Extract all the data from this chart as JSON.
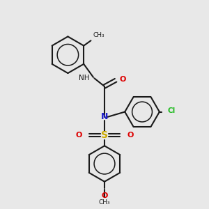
{
  "bg_color": "#e8e8e8",
  "bond_color": "#1a1a1a",
  "n_color": "#2020cc",
  "o_color": "#dd0000",
  "s_color": "#ccaa00",
  "cl_color": "#22bb22",
  "lw": 1.5,
  "figsize": [
    3.0,
    3.0
  ],
  "dpi": 100,
  "xlim": [
    0,
    10
  ],
  "ylim": [
    0,
    10
  ]
}
